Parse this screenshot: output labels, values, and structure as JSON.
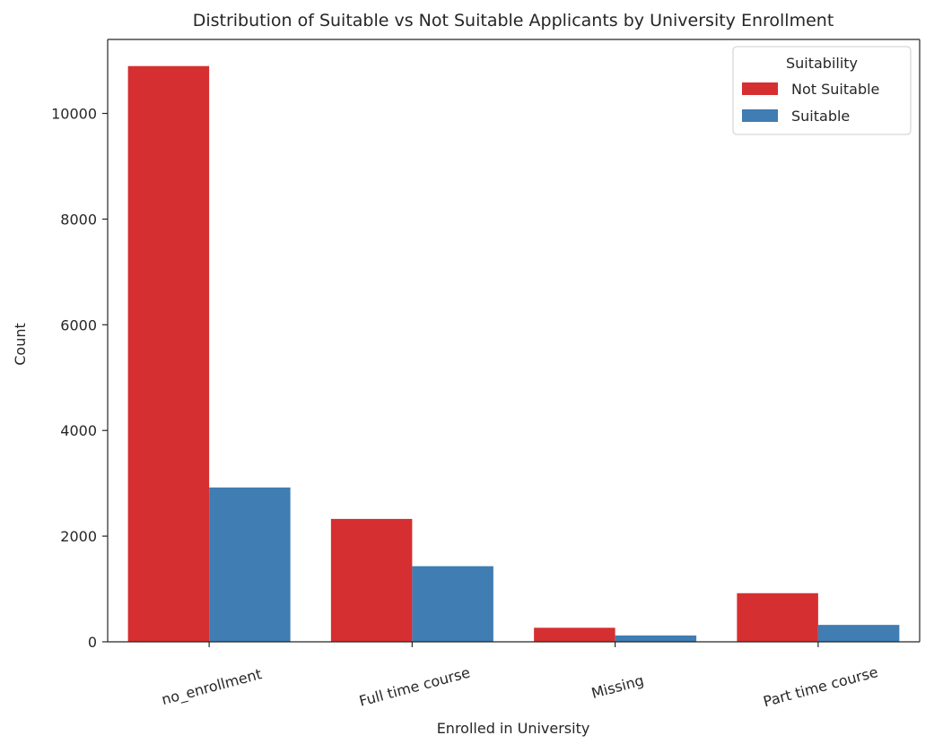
{
  "chart_data": {
    "type": "bar",
    "title": "Distribution of Suitable vs Not Suitable Applicants by University Enrollment",
    "xlabel": "Enrolled in University",
    "ylabel": "Count",
    "categories": [
      "no_enrollment",
      "Full time course",
      "Missing",
      "Part time course"
    ],
    "series": [
      {
        "name": "Not Suitable",
        "color": "#d62f31",
        "values": [
          10896,
          2326,
          266,
          920
        ]
      },
      {
        "name": "Suitable",
        "color": "#3f7db3",
        "values": [
          2921,
          1431,
          120,
          320
        ]
      }
    ],
    "ylim": [
      0,
      11400
    ],
    "yticks": [
      0,
      2000,
      4000,
      6000,
      8000,
      10000
    ],
    "legend": {
      "title": "Suitability",
      "position": "top-right"
    },
    "grid": false
  }
}
